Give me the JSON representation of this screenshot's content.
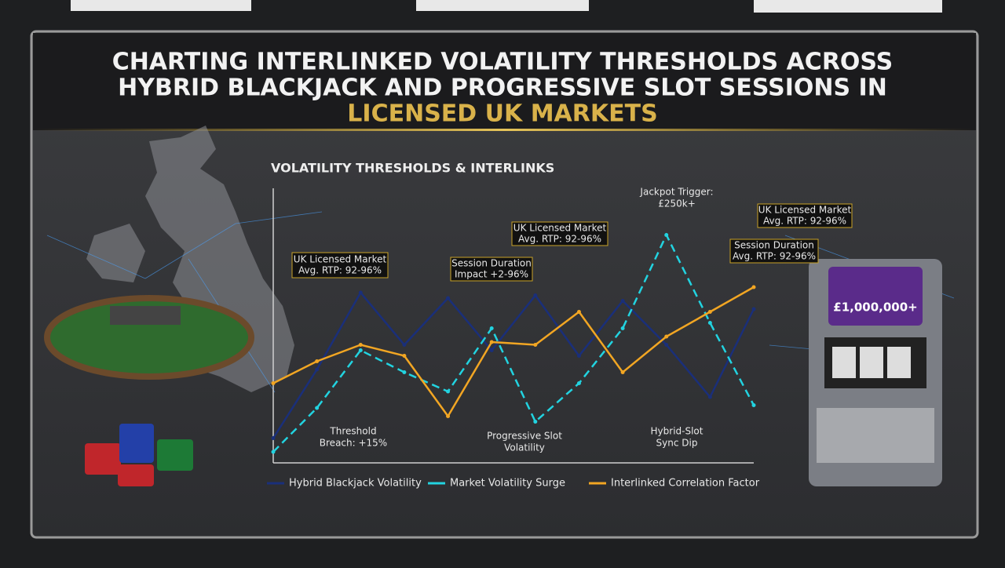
{
  "header": {
    "title_lines": [
      "CHARTING INTERLINKED VOLATILITY THRESHOLDS ACROSS",
      "HYBRID BLACKJACK AND PROGRESSIVE SLOT SESSIONS IN",
      "LICENSED UK MARKETS"
    ]
  },
  "decor": {
    "slot_display": "£1,000,000+"
  },
  "chart_data": {
    "type": "line",
    "title": "VOLATILITY THRESHOLDS & INTERLINKS",
    "categories": [
      null,
      null,
      null,
      null,
      null,
      null,
      null,
      null,
      null,
      null,
      null,
      null
    ],
    "ylim": [
      0,
      100
    ],
    "series": [
      {
        "name": "Hybrid Blackjack Volatility",
        "color": "#1a2f7a",
        "dashed": false,
        "values": [
          9,
          34,
          62,
          43,
          60,
          41,
          61,
          39,
          59,
          43,
          24,
          56
        ]
      },
      {
        "name": "Market Volatility Surge",
        "color": "#22d3e0",
        "dashed": true,
        "values": [
          4,
          20,
          41,
          33,
          26,
          49,
          15,
          29,
          49,
          83,
          51,
          21
        ]
      },
      {
        "name": "Interlinked Correlation Factor",
        "color": "#f2a623",
        "dashed": false,
        "values": [
          29,
          37,
          43,
          39,
          17,
          44,
          43,
          55,
          33,
          46,
          55,
          64
        ]
      }
    ],
    "legend": "bottom",
    "annotations": [
      "UK Licensed Market",
      "Avg. RTP: 92-96%",
      "Session Duration",
      "Impact +2-96%",
      "UK Licensed Market",
      "Avg. RTP: 92-96%",
      "Jackpot Trigger:",
      "£250k+",
      "UK Licensed Market",
      "Avg. RTP: 92-96%",
      "Session Duration",
      "Avg. RTP: 92-96%",
      "Threshold",
      "Breach: +15%",
      "Progressive Slot",
      "Volatility",
      "Hybrid-Slot",
      "Sync Dip"
    ]
  }
}
